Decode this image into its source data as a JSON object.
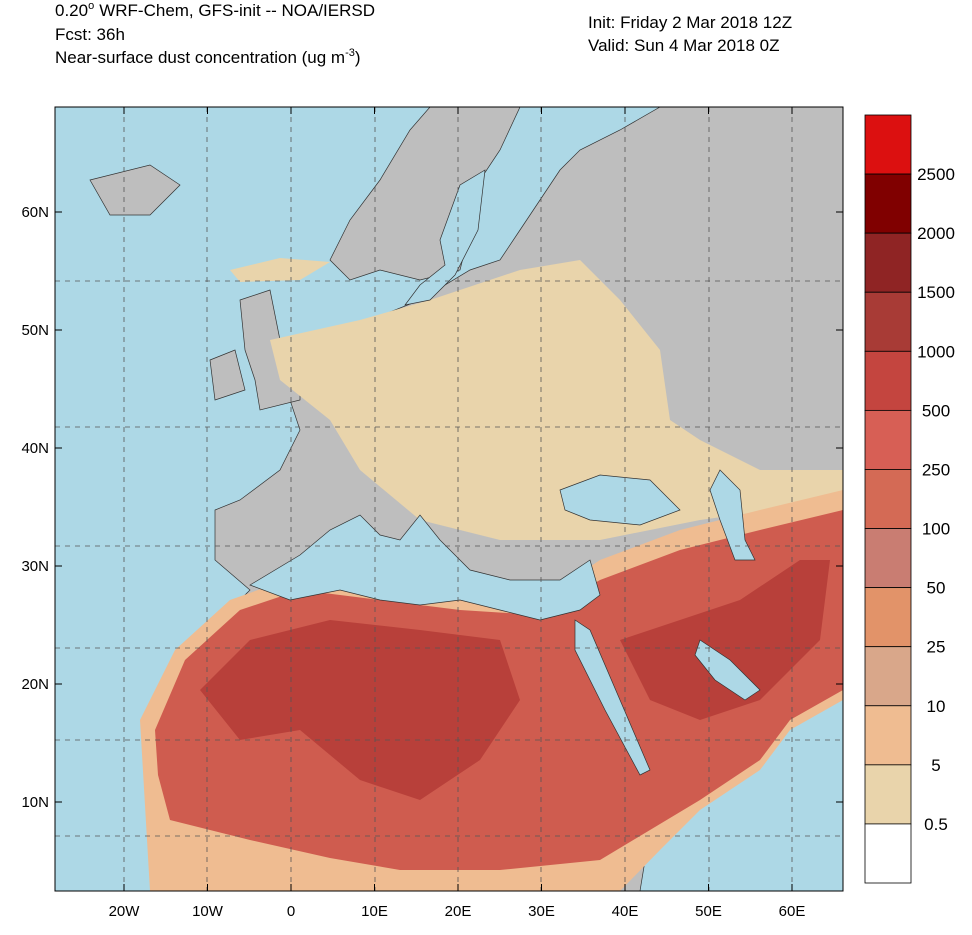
{
  "header": {
    "resolution": "0.20",
    "degree": "o",
    "model": "WRF-Chem, GFS-init -- NOA/IERSD",
    "forecast": "Fcst: 36h",
    "field": "Near-surface dust concentration (ug m",
    "unit_exp": "-3",
    "field_end": ")",
    "init": "Init: Friday 2 Mar 2018  12Z",
    "valid": "Valid: Sun 4 Mar 2018  0Z"
  },
  "map": {
    "lat_labels": [
      "60N",
      "50N",
      "40N",
      "30N",
      "20N",
      "10N"
    ],
    "lon_labels": [
      "20W",
      "10W",
      "0",
      "10E",
      "20E",
      "30E",
      "40E",
      "50E",
      "60E"
    ]
  },
  "legend": {
    "labels": [
      "2500",
      "2000",
      "1500",
      "1000",
      "500",
      "250",
      "100",
      "50",
      "25",
      "10",
      "5",
      "0.5"
    ],
    "colors": [
      "#dc1010",
      "#800000",
      "#8f2424",
      "#a83b36",
      "#c4453f",
      "#d75f55",
      "#d46a55",
      "#c97d72",
      "#e29369",
      "#d9a78a",
      "#efbc91",
      "#e9d4ab",
      "#ffffff"
    ]
  }
}
